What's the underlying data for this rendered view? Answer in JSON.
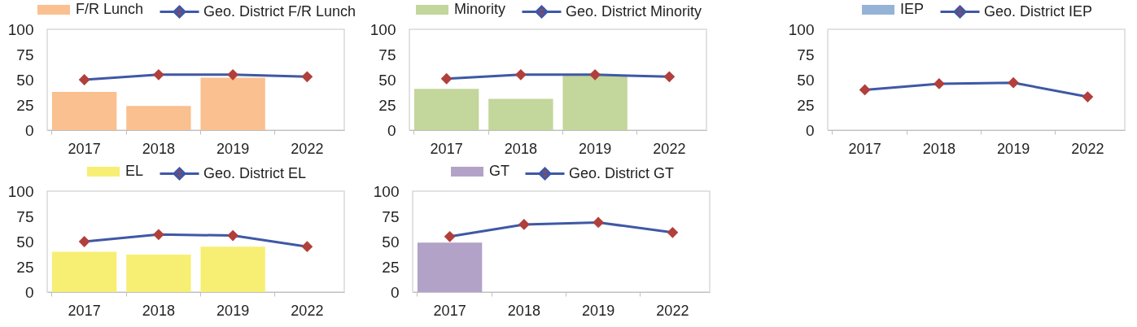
{
  "chart_data": [
    {
      "type": "bar",
      "categories": [
        "2017",
        "2018",
        "2019",
        "2022"
      ],
      "ylim": [
        0,
        100
      ],
      "yticks": [
        0,
        25,
        50,
        75,
        100
      ],
      "legend": "top",
      "series": [
        {
          "name": "F/R Lunch",
          "color": "#fac090",
          "values": [
            38,
            24,
            52,
            null
          ]
        },
        {
          "name": "Geo. District F/R Lunch",
          "type": "line",
          "marker": "diamond",
          "color": "#3f58a6",
          "colors": [
            "#b13f3b",
            "#b13f3b",
            "#b13f3b",
            "#b13f3b"
          ],
          "values": [
            50,
            55,
            55,
            53
          ]
        }
      ]
    },
    {
      "type": "bar",
      "categories": [
        "2017",
        "2018",
        "2019",
        "2022"
      ],
      "ylim": [
        0,
        100
      ],
      "yticks": [
        0,
        25,
        50,
        75,
        100
      ],
      "legend": "top",
      "series": [
        {
          "name": "Minority",
          "color": "#c3d69b",
          "values": [
            41,
            31,
            55,
            null
          ]
        },
        {
          "name": "Geo. District Minority",
          "type": "line",
          "marker": "diamond",
          "color": "#3f58a6",
          "colors": [
            "#b13f3b",
            "#b13f3b",
            "#b13f3b",
            "#b13f3b"
          ],
          "values": [
            51,
            55,
            55,
            53
          ]
        }
      ]
    },
    {
      "type": "bar",
      "categories": [
        "2017",
        "2018",
        "2019",
        "2022"
      ],
      "ylim": [
        0,
        100
      ],
      "yticks": [
        0,
        25,
        50,
        75,
        100
      ],
      "legend": "top",
      "series": [
        {
          "name": "IEP",
          "color": "#95b3d7",
          "values": [
            null,
            null,
            null,
            null
          ]
        },
        {
          "name": "Geo. District IEP",
          "type": "line",
          "marker": "diamond",
          "color": "#3f58a6",
          "colors": [
            "#b13f3b",
            "#b13f3b",
            "#b13f3b",
            "#b13f3b"
          ],
          "values": [
            40,
            46,
            47,
            33
          ]
        }
      ]
    },
    {
      "type": "bar",
      "categories": [
        "2017",
        "2018",
        "2019",
        "2022"
      ],
      "ylim": [
        0,
        100
      ],
      "yticks": [
        0,
        25,
        50,
        75,
        100
      ],
      "legend": "top",
      "series": [
        {
          "name": "EL",
          "color": "#f7ef74",
          "values": [
            40,
            37,
            45,
            null
          ]
        },
        {
          "name": "Geo. District EL",
          "type": "line",
          "marker": "diamond",
          "color": "#3f58a6",
          "colors": [
            "#b13f3b",
            "#b13f3b",
            "#b13f3b",
            "#b13f3b"
          ],
          "values": [
            50,
            57,
            56,
            45
          ]
        }
      ]
    },
    {
      "type": "bar",
      "categories": [
        "2017",
        "2018",
        "2019",
        "2022"
      ],
      "ylim": [
        0,
        100
      ],
      "yticks": [
        0,
        25,
        50,
        75,
        100
      ],
      "legend": "top",
      "series": [
        {
          "name": "GT",
          "color": "#b3a2c7",
          "values": [
            49,
            null,
            null,
            null
          ]
        },
        {
          "name": "Geo. District GT",
          "type": "line",
          "marker": "diamond",
          "color": "#3f58a6",
          "colors": [
            "#b13f3b",
            "#b13f3b",
            "#b13f3b",
            "#b13f3b"
          ],
          "values": [
            55,
            67,
            69,
            59
          ]
        }
      ]
    }
  ]
}
